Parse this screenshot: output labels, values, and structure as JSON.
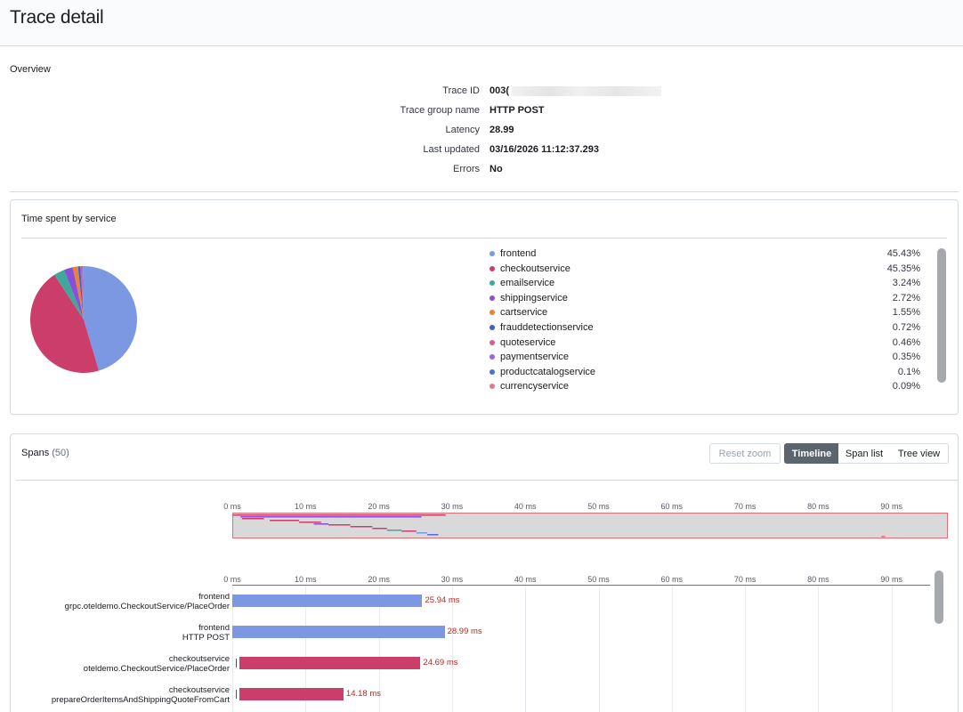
{
  "page": {
    "title": "Trace detail"
  },
  "overview": {
    "title": "Overview",
    "fields": [
      {
        "label": "Trace ID",
        "value": "003("
      },
      {
        "label": "Trace group name",
        "value": "HTTP POST"
      },
      {
        "label": "Latency",
        "value": "28.99"
      },
      {
        "label": "Last updated",
        "value": "03/16/2026 11:12:37.293"
      },
      {
        "label": "Errors",
        "value": "No"
      }
    ]
  },
  "time_spent": {
    "title": "Time spent by service",
    "services": [
      {
        "name": "frontend",
        "percent": "45.43%",
        "value": 45.43,
        "color": "#7d98e3"
      },
      {
        "name": "checkoutservice",
        "percent": "45.35%",
        "value": 45.35,
        "color": "#cb3d6a"
      },
      {
        "name": "emailservice",
        "percent": "3.24%",
        "value": 3.24,
        "color": "#3fa89a"
      },
      {
        "name": "shippingservice",
        "percent": "2.72%",
        "value": 2.72,
        "color": "#8a4fd6"
      },
      {
        "name": "cartservice",
        "percent": "1.55%",
        "value": 1.55,
        "color": "#e7823a"
      },
      {
        "name": "frauddetectionservice",
        "percent": "0.72%",
        "value": 0.72,
        "color": "#3f5fc7"
      },
      {
        "name": "quoteservice",
        "percent": "0.46%",
        "value": 0.46,
        "color": "#d85f8a"
      },
      {
        "name": "paymentservice",
        "percent": "0.35%",
        "value": 0.35,
        "color": "#9e63de"
      },
      {
        "name": "productcatalogservice",
        "percent": "0.1%",
        "value": 0.1,
        "color": "#4a6ee0"
      },
      {
        "name": "currencyservice",
        "percent": "0.09%",
        "value": 0.09,
        "color": "#e07a8c"
      }
    ]
  },
  "spans": {
    "title": "Spans",
    "count": "(50)",
    "buttons": {
      "reset_zoom": "Reset zoom",
      "timeline": "Timeline",
      "span_list": "Span list",
      "tree_view": "Tree view"
    },
    "selected_view": "Timeline",
    "ticks": [
      "0 ms",
      "10 ms",
      "20 ms",
      "30 ms",
      "40 ms",
      "50 ms",
      "60 ms",
      "70 ms",
      "80 ms",
      "90 ms"
    ],
    "rows": [
      {
        "service": "frontend",
        "operation": "grpc.oteldemo.CheckoutService/PlaceOrder",
        "start_ms": 0,
        "duration_ms": 25.94,
        "duration_label": "25.94 ms",
        "color": "#7d98e3",
        "marker": false
      },
      {
        "service": "frontend",
        "operation": "HTTP POST",
        "start_ms": 0,
        "duration_ms": 28.99,
        "duration_label": "28.99 ms",
        "color": "#7d98e3",
        "marker": false
      },
      {
        "service": "checkoutservice",
        "operation": "oteldemo.CheckoutService/PlaceOrder",
        "start_ms": 1.0,
        "duration_ms": 24.69,
        "duration_label": "24.69 ms",
        "color": "#cb3d6a",
        "marker": true
      },
      {
        "service": "checkoutservice",
        "operation": "prepareOrderItemsAndShippingQuoteFromCart",
        "start_ms": 1.0,
        "duration_ms": 14.18,
        "duration_label": "14.18 ms",
        "color": "#cb3d6a",
        "marker": true
      }
    ]
  }
}
